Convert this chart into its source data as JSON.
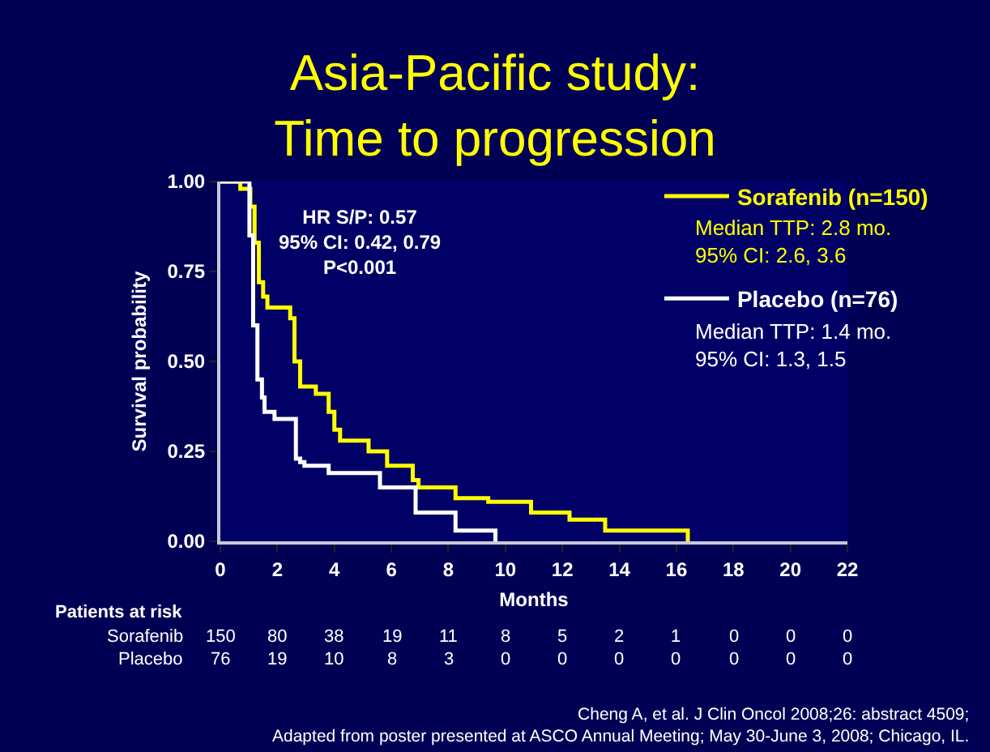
{
  "chart_data": {
    "type": "step",
    "title": "Asia-Pacific study:\nTime to progression",
    "xlabel": "Months",
    "ylabel": "Survival probability",
    "xlim": [
      0,
      22
    ],
    "xticks": [
      0,
      2,
      4,
      6,
      8,
      10,
      12,
      14,
      16,
      18,
      20,
      22
    ],
    "ylim": [
      0,
      1
    ],
    "yticks": [
      {
        "value": 0,
        "label": "0.00"
      },
      {
        "value": 0.25,
        "label": "0.25"
      },
      {
        "value": 0.5,
        "label": "0.50"
      },
      {
        "value": 0.75,
        "label": "0.75"
      },
      {
        "value": 1,
        "label": "1.00"
      }
    ],
    "grid": false,
    "legend": "top right",
    "marker": "none",
    "line_style": "solid",
    "series": [
      {
        "name": "Sorafenib (n=150)",
        "color": "#ffff00",
        "x": [
          0,
          0.7,
          1.05,
          1.2,
          1.35,
          1.5,
          1.65,
          2.45,
          2.6,
          2.8,
          3.35,
          3.8,
          4.0,
          4.2,
          5.2,
          5.85,
          6.75,
          6.95,
          8.25,
          9.4,
          10.9,
          12.25,
          13.5,
          16.4
        ],
        "values": [
          1.0,
          0.98,
          0.93,
          0.83,
          0.72,
          0.68,
          0.65,
          0.62,
          0.5,
          0.43,
          0.41,
          0.36,
          0.31,
          0.28,
          0.25,
          0.21,
          0.17,
          0.15,
          0.12,
          0.11,
          0.08,
          0.06,
          0.03,
          0.0
        ]
      },
      {
        "name": "Placebo (n=76)",
        "color": "#ffffff",
        "x": [
          0,
          1.02,
          1.15,
          1.3,
          1.46,
          1.55,
          1.9,
          2.65,
          2.8,
          2.95,
          3.8,
          5.6,
          6.85,
          8.25,
          9.65
        ],
        "values": [
          1.0,
          0.85,
          0.6,
          0.45,
          0.4,
          0.36,
          0.34,
          0.23,
          0.22,
          0.21,
          0.19,
          0.15,
          0.08,
          0.03,
          0.0
        ]
      }
    ],
    "annotations": [
      "HR S/P: 0.57\n95% CI: 0.42, 0.79\nP<0.001",
      "Median TTP: 2.8 mo.\n95% CI: 2.6, 3.6",
      "Median TTP: 1.4 mo.\n95% CI: 1.3, 1.5",
      "Patients at risk",
      "Sorafenib",
      "Placebo",
      "150 80 38 19 11 8 5 2 1 0 0 0",
      "76 19 10 8 3 0 0 0 0 0 0 0",
      "Cheng A, et al. J Clin Oncol 2008;26: abstract 4509;\nAdapted from poster presented at ASCO Annual Meeting; May 30-June 3, 2008; Chicago, IL."
    ]
  }
}
